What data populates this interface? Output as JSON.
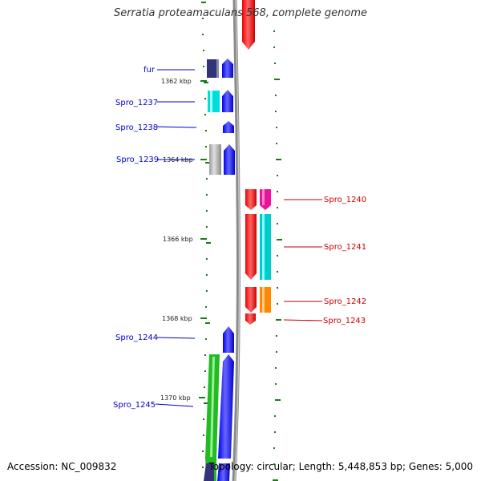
{
  "title": "Serratia proteamaculans 568, complete genome",
  "accession": "Accession: NC_009832",
  "topology": "Topology: circular; Length: 5,448,853 bp; Genes: 5,000",
  "colors": {
    "backbone": "#909090",
    "tick": "#1a7a1a",
    "label_left": "#0000cc",
    "label_right": "#cc0000"
  },
  "scale_labels": [
    "1362 kbp",
    "1364 kbp",
    "1366 kbp",
    "1368 kbp",
    "1370 kbp"
  ],
  "genes_left": [
    {
      "name": "fur",
      "color": "#0000ee",
      "cog_color": "#33337a"
    },
    {
      "name": "Spro_1237",
      "color": "#0000ee",
      "cog_color": "#00dddd"
    },
    {
      "name": "Spro_1238",
      "color": "#0000ee",
      "cog_color": ""
    },
    {
      "name": "Spro_1239",
      "color": "#0000ee",
      "cog_color": "#bbbbbb"
    },
    {
      "name": "Spro_1244",
      "color": "#0000ee",
      "cog_color": ""
    },
    {
      "name": "Spro_1245",
      "color": "#0000ee",
      "cog_color": "#22bb22"
    }
  ],
  "genes_right": [
    {
      "name": "Spro_1240",
      "color": "#ee0000",
      "cog_color": "#ee1199"
    },
    {
      "name": "Spro_1241",
      "color": "#ee0000",
      "cog_color": "#00cccc"
    },
    {
      "name": "Spro_1242",
      "color": "#ee0000",
      "cog_color": "#ff8800"
    },
    {
      "name": "Spro_1243",
      "color": "#ee0000",
      "cog_color": ""
    }
  ]
}
